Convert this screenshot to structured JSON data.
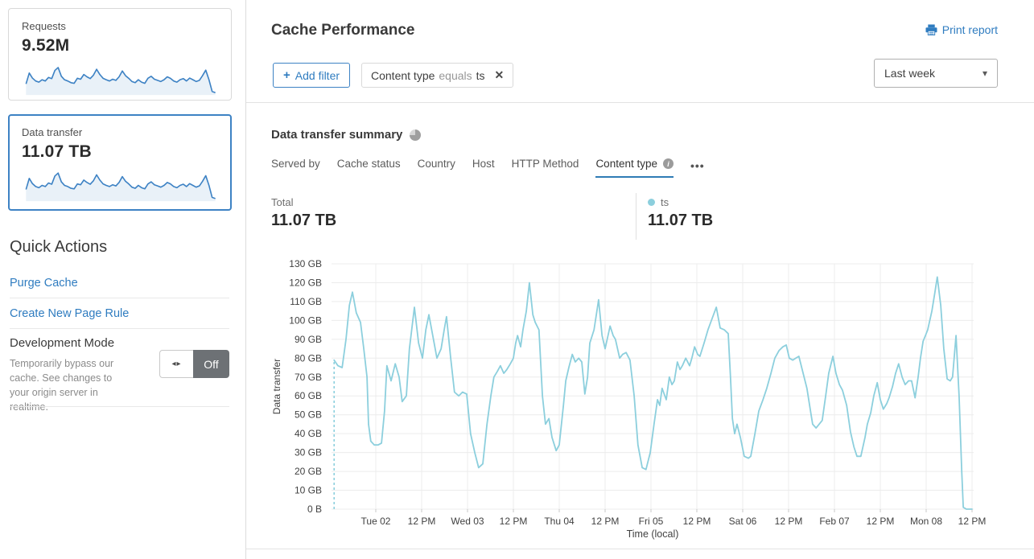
{
  "sidebar": {
    "requests_card": {
      "label": "Requests",
      "value": "9.52M",
      "sparkline": [
        38,
        75,
        58,
        48,
        44,
        52,
        48,
        60,
        56,
        84,
        94,
        64,
        52,
        48,
        42,
        40,
        57,
        54,
        70,
        62,
        56,
        68,
        88,
        70,
        57,
        52,
        48,
        54,
        50,
        62,
        82,
        66,
        57,
        46,
        42,
        52,
        44,
        40,
        57,
        64,
        54,
        50,
        46,
        52,
        62,
        57,
        48,
        44,
        52,
        56,
        48,
        58,
        52,
        46,
        50,
        66,
        85,
        52,
        12,
        8
      ]
    },
    "data_transfer_card": {
      "label": "Data transfer",
      "value": "11.07 TB",
      "sparkline": [
        40,
        78,
        60,
        50,
        46,
        54,
        50,
        62,
        58,
        86,
        96,
        66,
        54,
        50,
        44,
        42,
        59,
        56,
        72,
        64,
        58,
        70,
        90,
        72,
        59,
        54,
        50,
        56,
        52,
        64,
        84,
        68,
        59,
        48,
        44,
        54,
        46,
        42,
        59,
        66,
        56,
        52,
        48,
        54,
        64,
        59,
        50,
        46,
        54,
        58,
        50,
        60,
        54,
        48,
        52,
        68,
        87,
        54,
        13,
        9
      ]
    },
    "spark_colors": {
      "stroke": "#3d82c4",
      "fill": "#e9f1f8"
    },
    "quick_actions": {
      "title": "Quick Actions",
      "links": [
        "Purge Cache",
        "Create New Page Rule"
      ],
      "development_mode": {
        "title": "Development Mode",
        "description": "Temporarily bypass our cache. See changes to your origin server in realtime.",
        "toggle_arrows": "◂▸",
        "toggle_state": "Off"
      }
    }
  },
  "header": {
    "title": "Cache Performance",
    "print_report": "Print report",
    "add_filter_plus": "+",
    "add_filter": "Add filter",
    "filter_chip": {
      "field": "Content type",
      "operator": "equals",
      "value": "ts",
      "remove": "✕"
    },
    "time_range": "Last week",
    "chevron": "▾"
  },
  "summary": {
    "heading": "Data transfer summary",
    "tabs": [
      "Served by",
      "Cache status",
      "Country",
      "Host",
      "HTTP Method",
      "Content type"
    ],
    "active_tab": "Content type",
    "info_glyph": "i",
    "more": "•••",
    "total_label": "Total",
    "total_value": "11.07 TB",
    "legend": {
      "name": "ts",
      "value": "11.07 TB",
      "color": "#8ccfdd"
    }
  },
  "chart_data": {
    "type": "line",
    "title": "Data transfer summary",
    "xlabel": "Time (local)",
    "ylabel": "Data transfer",
    "ylim": [
      0,
      130
    ],
    "grid": true,
    "legend_position": "above-right",
    "x_unit": "hours since Mon Feb 01 00:00 (local)",
    "x_domain_hours": [
      12.4,
      180.4
    ],
    "y_ticks": [
      {
        "v": 130,
        "label": "130 GB"
      },
      {
        "v": 120,
        "label": "120 GB"
      },
      {
        "v": 110,
        "label": "110 GB"
      },
      {
        "v": 100,
        "label": "100 GB"
      },
      {
        "v": 90,
        "label": "90 GB"
      },
      {
        "v": 80,
        "label": "80 GB"
      },
      {
        "v": 70,
        "label": "70 GB"
      },
      {
        "v": 60,
        "label": "60 GB"
      },
      {
        "v": 50,
        "label": "50 GB"
      },
      {
        "v": 40,
        "label": "40 GB"
      },
      {
        "v": 30,
        "label": "30 GB"
      },
      {
        "v": 20,
        "label": "20 GB"
      },
      {
        "v": 10,
        "label": "10 GB"
      },
      {
        "v": 0,
        "label": "0 B"
      }
    ],
    "x_ticks": [
      {
        "t": 24,
        "label": "Tue 02"
      },
      {
        "t": 36,
        "label": "12 PM"
      },
      {
        "t": 48,
        "label": "Wed 03"
      },
      {
        "t": 60,
        "label": "12 PM"
      },
      {
        "t": 72,
        "label": "Thu 04"
      },
      {
        "t": 84,
        "label": "12 PM"
      },
      {
        "t": 96,
        "label": "Fri 05"
      },
      {
        "t": 108,
        "label": "12 PM"
      },
      {
        "t": 120,
        "label": "Sat 06"
      },
      {
        "t": 132,
        "label": "12 PM"
      },
      {
        "t": 144,
        "label": "Feb 07"
      },
      {
        "t": 156,
        "label": "12 PM"
      },
      {
        "t": 168,
        "label": "Mon 08"
      },
      {
        "t": 180,
        "label": "12 PM"
      }
    ],
    "first_point_dashed_drop": true,
    "series": [
      {
        "name": "ts",
        "unit": "GB",
        "color": "#8ccfdd",
        "points": [
          [
            13.1,
            79
          ],
          [
            14.1,
            76
          ],
          [
            15.2,
            75
          ],
          [
            16.2,
            90
          ],
          [
            17.1,
            108
          ],
          [
            17.9,
            115
          ],
          [
            18.9,
            104
          ],
          [
            20,
            99
          ],
          [
            20.8,
            86
          ],
          [
            21.7,
            70
          ],
          [
            22.1,
            45
          ],
          [
            22.7,
            36
          ],
          [
            23.6,
            34
          ],
          [
            24.6,
            34
          ],
          [
            25.5,
            35
          ],
          [
            26.3,
            52
          ],
          [
            26.9,
            76
          ],
          [
            28,
            68
          ],
          [
            29.1,
            77
          ],
          [
            30.1,
            70
          ],
          [
            30.9,
            57
          ],
          [
            32,
            60
          ],
          [
            32.8,
            85
          ],
          [
            34.1,
            107
          ],
          [
            35.2,
            88
          ],
          [
            36.2,
            80
          ],
          [
            37.1,
            95
          ],
          [
            37.9,
            103
          ],
          [
            38.9,
            92
          ],
          [
            40,
            80
          ],
          [
            41.1,
            85
          ],
          [
            41.9,
            95
          ],
          [
            42.5,
            102
          ],
          [
            43.6,
            80
          ],
          [
            44.6,
            62
          ],
          [
            45.7,
            60
          ],
          [
            46.7,
            62
          ],
          [
            47.8,
            61
          ],
          [
            48.8,
            40
          ],
          [
            49.9,
            30
          ],
          [
            50.9,
            22
          ],
          [
            52,
            24
          ],
          [
            53.1,
            45
          ],
          [
            54.1,
            60
          ],
          [
            54.9,
            70
          ],
          [
            55.8,
            73
          ],
          [
            56.6,
            76
          ],
          [
            57.5,
            72
          ],
          [
            58.3,
            74
          ],
          [
            59.2,
            77
          ],
          [
            60,
            80
          ],
          [
            60.6,
            88
          ],
          [
            61.1,
            92
          ],
          [
            61.9,
            86
          ],
          [
            62.5,
            95
          ],
          [
            63.4,
            105
          ],
          [
            64.2,
            120
          ],
          [
            65.1,
            103
          ],
          [
            65.7,
            99
          ],
          [
            66.7,
            95
          ],
          [
            67.6,
            60
          ],
          [
            68.4,
            45
          ],
          [
            69.3,
            48
          ],
          [
            70.1,
            38
          ],
          [
            71.2,
            31
          ],
          [
            72,
            34
          ],
          [
            73.1,
            55
          ],
          [
            73.7,
            68
          ],
          [
            74.5,
            75
          ],
          [
            75.4,
            82
          ],
          [
            76.2,
            78
          ],
          [
            77.1,
            80
          ],
          [
            77.9,
            78
          ],
          [
            78.7,
            61
          ],
          [
            79.4,
            70
          ],
          [
            80,
            88
          ],
          [
            81.1,
            95
          ],
          [
            81.7,
            103
          ],
          [
            82.3,
            111
          ],
          [
            83.2,
            92
          ],
          [
            84,
            85
          ],
          [
            85.3,
            97
          ],
          [
            86.1,
            92
          ],
          [
            86.7,
            90
          ],
          [
            87.8,
            80
          ],
          [
            88.6,
            82
          ],
          [
            89.5,
            83
          ],
          [
            90.5,
            79
          ],
          [
            91.6,
            60
          ],
          [
            92.6,
            34
          ],
          [
            93.7,
            22
          ],
          [
            94.7,
            21
          ],
          [
            95.8,
            30
          ],
          [
            96.8,
            45
          ],
          [
            97.7,
            58
          ],
          [
            98.3,
            55
          ],
          [
            98.9,
            64
          ],
          [
            100,
            58
          ],
          [
            100.8,
            70
          ],
          [
            101.5,
            66
          ],
          [
            102.1,
            68
          ],
          [
            102.9,
            78
          ],
          [
            103.6,
            74
          ],
          [
            104.2,
            76
          ],
          [
            105.1,
            80
          ],
          [
            106.1,
            76
          ],
          [
            106.7,
            80
          ],
          [
            107.4,
            86
          ],
          [
            108.2,
            82
          ],
          [
            108.8,
            81
          ],
          [
            109.9,
            88
          ],
          [
            110.9,
            95
          ],
          [
            112,
            101
          ],
          [
            113.1,
            107
          ],
          [
            114.1,
            96
          ],
          [
            115.2,
            95
          ],
          [
            116.2,
            93
          ],
          [
            116.8,
            70
          ],
          [
            117.3,
            48
          ],
          [
            117.9,
            40
          ],
          [
            118.5,
            45
          ],
          [
            119.4,
            38
          ],
          [
            120.4,
            28
          ],
          [
            121.5,
            27
          ],
          [
            122.1,
            28
          ],
          [
            123.2,
            40
          ],
          [
            124.2,
            52
          ],
          [
            125.3,
            58
          ],
          [
            126.3,
            64
          ],
          [
            127.4,
            72
          ],
          [
            128.4,
            80
          ],
          [
            129.5,
            84
          ],
          [
            130.5,
            86
          ],
          [
            131.4,
            87
          ],
          [
            132.2,
            80
          ],
          [
            133.1,
            79
          ],
          [
            133.9,
            80
          ],
          [
            134.7,
            81
          ],
          [
            135.8,
            72
          ],
          [
            136.8,
            64
          ],
          [
            137.9,
            50
          ],
          [
            138.3,
            45
          ],
          [
            139.2,
            43
          ],
          [
            140,
            45
          ],
          [
            140.8,
            47
          ],
          [
            141.7,
            60
          ],
          [
            142.5,
            72
          ],
          [
            143.6,
            81
          ],
          [
            144.4,
            72
          ],
          [
            145.3,
            66
          ],
          [
            146.1,
            63
          ],
          [
            147.2,
            55
          ],
          [
            148.2,
            41
          ],
          [
            149.1,
            33
          ],
          [
            149.9,
            28
          ],
          [
            150.9,
            28
          ],
          [
            152,
            38
          ],
          [
            152.6,
            45
          ],
          [
            153.5,
            51
          ],
          [
            154.3,
            60
          ],
          [
            155.2,
            67
          ],
          [
            156,
            58
          ],
          [
            156.8,
            53
          ],
          [
            157.7,
            56
          ],
          [
            158.3,
            59
          ],
          [
            159.2,
            65
          ],
          [
            160,
            72
          ],
          [
            160.8,
            77
          ],
          [
            161.7,
            70
          ],
          [
            162.5,
            66
          ],
          [
            163.4,
            68
          ],
          [
            164.2,
            68
          ],
          [
            165.1,
            59
          ],
          [
            165.9,
            70
          ],
          [
            166.5,
            80
          ],
          [
            167.2,
            89
          ],
          [
            167.8,
            92
          ],
          [
            168.4,
            95
          ],
          [
            169.5,
            105
          ],
          [
            170.3,
            115
          ],
          [
            170.9,
            123
          ],
          [
            171.8,
            108
          ],
          [
            172.6,
            85
          ],
          [
            173.5,
            69
          ],
          [
            174.3,
            68
          ],
          [
            174.9,
            70
          ],
          [
            175.8,
            92
          ],
          [
            176.6,
            60
          ],
          [
            177.3,
            20
          ],
          [
            177.7,
            1
          ],
          [
            178.5,
            0
          ],
          [
            179.4,
            0
          ],
          [
            180,
            0
          ]
        ]
      }
    ],
    "totals": {
      "total": "11.07 TB",
      "ts": "11.07 TB"
    },
    "colors": {
      "grid": "#ececec",
      "tick": "#c9c9c9",
      "axis_text": "#414141"
    }
  }
}
